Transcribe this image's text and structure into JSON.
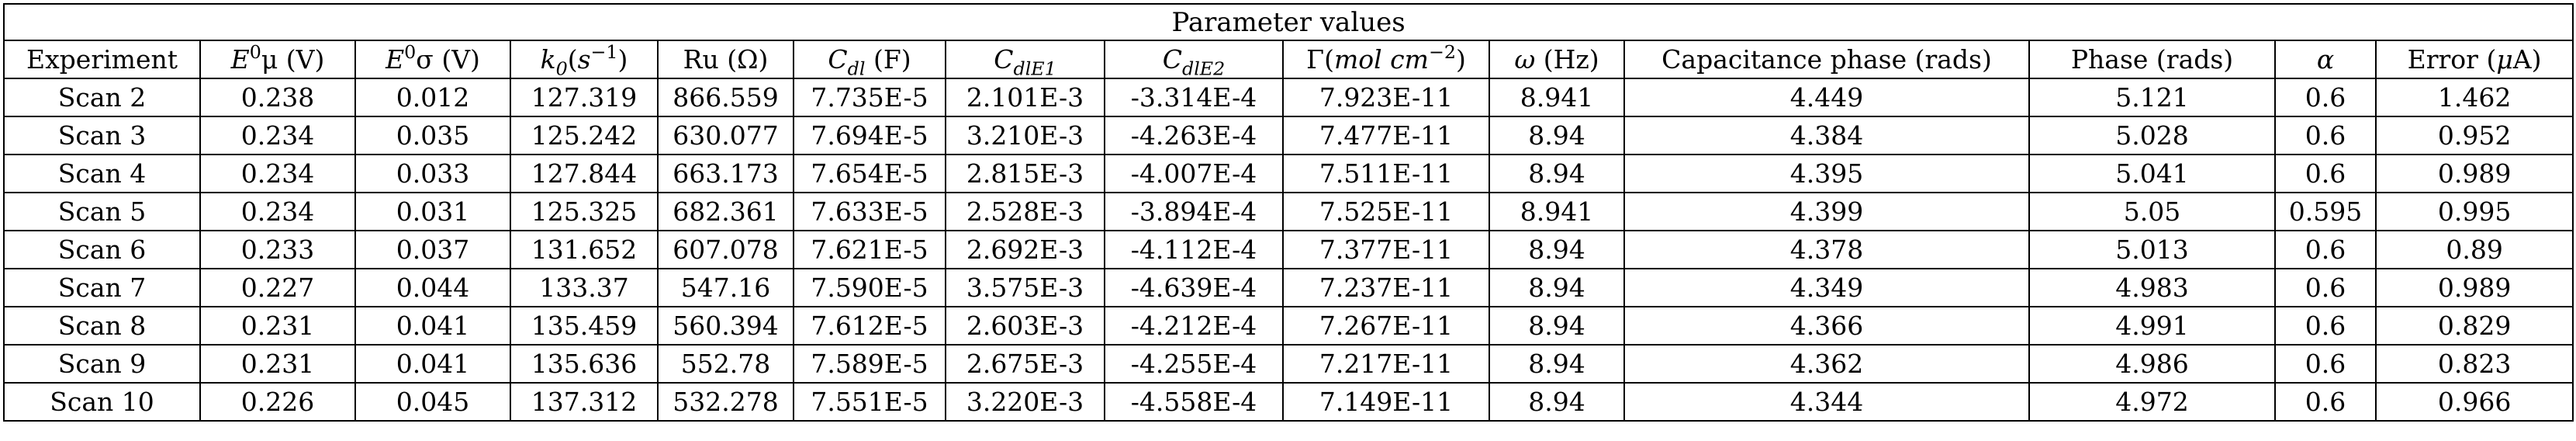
{
  "table": {
    "caption": "Parameter values",
    "columns": [
      {
        "id": "experiment",
        "label": "Experiment"
      },
      {
        "id": "e0mu",
        "symbol": "E",
        "sup": "0",
        "post": "μ (V)"
      },
      {
        "id": "e0sigma",
        "symbol": "E",
        "sup": "0",
        "post": "σ (V)"
      },
      {
        "id": "k0",
        "symbol": "k",
        "sub": "0",
        "post_open": "(",
        "unit_math": "s",
        "unit_sup": "−1",
        "post_close": ")"
      },
      {
        "id": "ru",
        "label": "Ru (Ω)"
      },
      {
        "id": "cdl",
        "symbol": "C",
        "sub": "dl",
        "post": " (F)"
      },
      {
        "id": "cdle1",
        "symbol": "C",
        "sub": "dlE1"
      },
      {
        "id": "cdle2",
        "symbol": "C",
        "sub": "dlE2"
      },
      {
        "id": "gamma",
        "pre": "Γ(",
        "unit_math": "mol cm",
        "unit_sup": "−2",
        "post_close": ")"
      },
      {
        "id": "omega",
        "symbol": "ω",
        "post": " (Hz)"
      },
      {
        "id": "cap_phase",
        "label": "Capacitance phase (rads)"
      },
      {
        "id": "phase",
        "label": "Phase (rads)"
      },
      {
        "id": "alpha",
        "symbol": "α"
      },
      {
        "id": "error",
        "pre": "Error (",
        "symbol": "μ",
        "post": "A)"
      }
    ],
    "rows": [
      [
        "Scan 2",
        "0.238",
        "0.012",
        "127.319",
        "866.559",
        "7.735E-5",
        "2.101E-3",
        "-3.314E-4",
        "7.923E-11",
        "8.941",
        "4.449",
        "5.121",
        "0.6",
        "1.462"
      ],
      [
        "Scan 3",
        "0.234",
        "0.035",
        "125.242",
        "630.077",
        "7.694E-5",
        "3.210E-3",
        "-4.263E-4",
        "7.477E-11",
        "8.94",
        "4.384",
        "5.028",
        "0.6",
        "0.952"
      ],
      [
        "Scan 4",
        "0.234",
        "0.033",
        "127.844",
        "663.173",
        "7.654E-5",
        "2.815E-3",
        "-4.007E-4",
        "7.511E-11",
        "8.94",
        "4.395",
        "5.041",
        "0.6",
        "0.989"
      ],
      [
        "Scan 5",
        "0.234",
        "0.031",
        "125.325",
        "682.361",
        "7.633E-5",
        "2.528E-3",
        "-3.894E-4",
        "7.525E-11",
        "8.941",
        "4.399",
        "5.05",
        "0.595",
        "0.995"
      ],
      [
        "Scan 6",
        "0.233",
        "0.037",
        "131.652",
        "607.078",
        "7.621E-5",
        "2.692E-3",
        "-4.112E-4",
        "7.377E-11",
        "8.94",
        "4.378",
        "5.013",
        "0.6",
        "0.89"
      ],
      [
        "Scan 7",
        "0.227",
        "0.044",
        "133.37",
        "547.16",
        "7.590E-5",
        "3.575E-3",
        "-4.639E-4",
        "7.237E-11",
        "8.94",
        "4.349",
        "4.983",
        "0.6",
        "0.989"
      ],
      [
        "Scan 8",
        "0.231",
        "0.041",
        "135.459",
        "560.394",
        "7.612E-5",
        "2.603E-3",
        "-4.212E-4",
        "7.267E-11",
        "8.94",
        "4.366",
        "4.991",
        "0.6",
        "0.829"
      ],
      [
        "Scan 9",
        "0.231",
        "0.041",
        "135.636",
        "552.78",
        "7.589E-5",
        "2.675E-3",
        "-4.255E-4",
        "7.217E-11",
        "8.94",
        "4.362",
        "4.986",
        "0.6",
        "0.823"
      ],
      [
        "Scan 10",
        "0.226",
        "0.045",
        "137.312",
        "532.278",
        "7.551E-5",
        "3.220E-3",
        "-4.558E-4",
        "7.149E-11",
        "8.94",
        "4.344",
        "4.972",
        "0.6",
        "0.966"
      ]
    ]
  }
}
